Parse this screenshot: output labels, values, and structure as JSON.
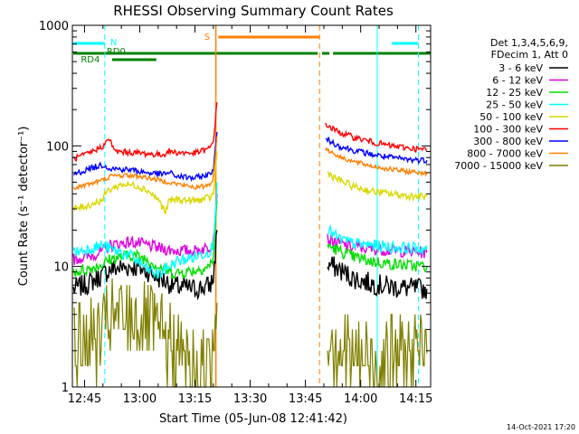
{
  "chart_data": {
    "type": "line",
    "title": "RHESSI Observing Summary Count Rates",
    "xlabel": "Start Time (05-Jun-08 12:41:42)",
    "ylabel": "Count Rate (s⁻¹ detector⁻¹)",
    "yscale": "log",
    "ylim": [
      1,
      1000
    ],
    "xlim_minutes": [
      "12:41:42",
      "14:19:00"
    ],
    "x_ticks": [
      "12:45",
      "13:00",
      "13:15",
      "13:30",
      "13:45",
      "14:00",
      "14:15"
    ],
    "y_ticks": [
      "1",
      "10",
      "100",
      "1000"
    ],
    "footer_date": "14-Oct-2021 17:20",
    "legend_header": [
      "Det 1,3,4,5,6,9,",
      "FDecim 1, Att 0"
    ],
    "flags": {
      "n_label": "N",
      "s_label": "S",
      "rd0_label": "RD0",
      "rd4_label": "RD4"
    },
    "vertical_markers": {
      "cyan_solid": [
        "12:41:42",
        "14:04:30"
      ],
      "cyan_dashed": [
        "12:50:30",
        "14:15:40"
      ],
      "orange_solid": [
        "13:20:40"
      ],
      "orange_dashed": [
        "13:48:50"
      ]
    },
    "series": [
      {
        "name": "3 - 6 keV",
        "color": "#000000",
        "points": [
          [
            "12:42",
            6.5
          ],
          [
            "12:46",
            7.2
          ],
          [
            "12:50",
            8.5
          ],
          [
            "12:52",
            9.5
          ],
          [
            "12:58",
            10
          ],
          [
            "13:02",
            9.2
          ],
          [
            "13:06",
            7.8
          ],
          [
            "13:10",
            6.8
          ],
          [
            "13:15",
            6.5
          ],
          [
            "13:19",
            6.9
          ],
          [
            "13:20",
            8
          ],
          [
            "13:21",
            20
          ],
          [
            "13:50",
            null
          ],
          [
            "13:51",
            10.5
          ],
          [
            "13:54",
            9.5
          ],
          [
            "13:58",
            8
          ],
          [
            "14:03",
            7.2
          ],
          [
            "14:08",
            6.8
          ],
          [
            "14:13",
            6.6
          ],
          [
            "14:18",
            6.5
          ]
        ]
      },
      {
        "name": "6 - 12 keV",
        "color": "#e000e0",
        "points": [
          [
            "12:42",
            11.5
          ],
          [
            "12:46",
            12
          ],
          [
            "12:50",
            13.5
          ],
          [
            "12:52",
            15
          ],
          [
            "12:58",
            16
          ],
          [
            "13:02",
            15
          ],
          [
            "13:06",
            14
          ],
          [
            "13:10",
            13.5
          ],
          [
            "13:15",
            13.5
          ],
          [
            "13:19",
            14.5
          ],
          [
            "13:20",
            17
          ],
          [
            "13:21",
            40
          ],
          [
            "13:50",
            null
          ],
          [
            "13:51",
            17
          ],
          [
            "13:54",
            15.5
          ],
          [
            "13:58",
            14.5
          ],
          [
            "14:03",
            14
          ],
          [
            "14:08",
            13.6
          ],
          [
            "14:13",
            13.3
          ],
          [
            "14:18",
            13
          ]
        ]
      },
      {
        "name": "12 - 25 keV",
        "color": "#00dd00",
        "points": [
          [
            "12:42",
            9
          ],
          [
            "12:46",
            9.5
          ],
          [
            "12:50",
            10.5
          ],
          [
            "12:52",
            11.5
          ],
          [
            "12:58",
            12.5
          ],
          [
            "13:02",
            11.5
          ],
          [
            "13:05",
            10
          ],
          [
            "13:08",
            9
          ],
          [
            "13:10",
            8.8
          ],
          [
            "13:15",
            9.3
          ],
          [
            "13:19",
            10
          ],
          [
            "13:20",
            12
          ],
          [
            "13:21",
            35
          ],
          [
            "13:50",
            null
          ],
          [
            "13:51",
            15
          ],
          [
            "13:54",
            13.5
          ],
          [
            "13:58",
            12
          ],
          [
            "14:03",
            11
          ],
          [
            "14:08",
            10.5
          ],
          [
            "14:13",
            10.2
          ],
          [
            "14:18",
            10
          ]
        ]
      },
      {
        "name": "25 - 50 keV",
        "color": "#00ffff",
        "points": [
          [
            "12:42",
            13
          ],
          [
            "12:46",
            14
          ],
          [
            "12:50",
            15
          ],
          [
            "12:52",
            14
          ],
          [
            "12:58",
            12
          ],
          [
            "13:02",
            9.5
          ],
          [
            "13:05",
            8.5
          ],
          [
            "13:07",
            9.5
          ],
          [
            "13:10",
            11
          ],
          [
            "13:15",
            12
          ],
          [
            "13:19",
            13.5
          ],
          [
            "13:20",
            15
          ],
          [
            "13:21",
            50
          ],
          [
            "13:50",
            null
          ],
          [
            "13:51",
            20
          ],
          [
            "13:54",
            17
          ],
          [
            "13:58",
            15.5
          ],
          [
            "14:03",
            15
          ],
          [
            "14:08",
            14.5
          ],
          [
            "14:13",
            14.2
          ],
          [
            "14:18",
            14
          ]
        ]
      },
      {
        "name": "50 - 100 keV",
        "color": "#d8d800",
        "points": [
          [
            "12:42",
            30
          ],
          [
            "12:46",
            32
          ],
          [
            "12:50",
            36
          ],
          [
            "12:51",
            42
          ],
          [
            "12:55",
            48
          ],
          [
            "12:59",
            47
          ],
          [
            "13:02",
            43
          ],
          [
            "13:05",
            36
          ],
          [
            "13:07",
            28
          ],
          [
            "13:08",
            35
          ],
          [
            "13:10",
            36
          ],
          [
            "13:15",
            35
          ],
          [
            "13:19",
            37
          ],
          [
            "13:20",
            40
          ],
          [
            "13:21",
            90
          ],
          [
            "13:50",
            null
          ],
          [
            "13:51",
            60
          ],
          [
            "13:54",
            52
          ],
          [
            "13:58",
            46
          ],
          [
            "14:03",
            42
          ],
          [
            "14:08",
            40
          ],
          [
            "14:13",
            38.5
          ],
          [
            "14:18",
            38
          ]
        ]
      },
      {
        "name": "100 - 300 keV",
        "color": "#ff0000",
        "points": [
          [
            "12:42",
            78
          ],
          [
            "12:46",
            86
          ],
          [
            "12:50",
            100
          ],
          [
            "12:52",
            115
          ],
          [
            "12:53",
            90
          ],
          [
            "12:58",
            88
          ],
          [
            "13:02",
            86
          ],
          [
            "13:06",
            84
          ],
          [
            "13:08",
            90
          ],
          [
            "13:10",
            88
          ],
          [
            "13:15",
            87
          ],
          [
            "13:19",
            95
          ],
          [
            "13:20",
            110
          ],
          [
            "13:21",
            230
          ],
          [
            "13:50",
            null
          ],
          [
            "13:50:30",
            150
          ],
          [
            "13:54",
            130
          ],
          [
            "13:58",
            118
          ],
          [
            "14:03",
            108
          ],
          [
            "14:08",
            100
          ],
          [
            "14:13",
            96
          ],
          [
            "14:18",
            92
          ]
        ]
      },
      {
        "name": "300 - 800 keV",
        "color": "#0000ff",
        "points": [
          [
            "12:42",
            58
          ],
          [
            "12:46",
            64
          ],
          [
            "12:50",
            70
          ],
          [
            "12:52",
            65
          ],
          [
            "12:58",
            63
          ],
          [
            "13:02",
            60
          ],
          [
            "13:06",
            58
          ],
          [
            "13:08",
            60
          ],
          [
            "13:10",
            56
          ],
          [
            "13:15",
            54
          ],
          [
            "13:19",
            58
          ],
          [
            "13:20",
            65
          ],
          [
            "13:21",
            130
          ],
          [
            "13:50",
            null
          ],
          [
            "13:50:30",
            115
          ],
          [
            "13:54",
            100
          ],
          [
            "13:58",
            92
          ],
          [
            "14:03",
            85
          ],
          [
            "14:08",
            80
          ],
          [
            "14:13",
            77
          ],
          [
            "14:18",
            76
          ]
        ]
      },
      {
        "name": "800 - 7000 keV",
        "color": "#ff8000",
        "points": [
          [
            "12:42",
            45
          ],
          [
            "12:46",
            48
          ],
          [
            "12:50",
            52
          ],
          [
            "12:52",
            56
          ],
          [
            "12:56",
            57
          ],
          [
            "13:00",
            56
          ],
          [
            "13:04",
            53
          ],
          [
            "13:08",
            50
          ],
          [
            "13:12",
            47
          ],
          [
            "13:16",
            45
          ],
          [
            "13:19",
            48
          ],
          [
            "13:20",
            55
          ],
          [
            "13:21",
            120
          ],
          [
            "13:50",
            null
          ],
          [
            "13:50:30",
            95
          ],
          [
            "13:54",
            82
          ],
          [
            "13:58",
            74
          ],
          [
            "14:03",
            68
          ],
          [
            "14:08",
            64
          ],
          [
            "14:13",
            61
          ],
          [
            "14:18",
            60
          ]
        ]
      },
      {
        "name": "7000 - 15000 keV",
        "color": "#808000",
        "points": [
          [
            "12:42",
            2.3
          ],
          [
            "12:50",
            2.6
          ],
          [
            "12:51",
            3.5
          ],
          [
            "12:58",
            3.8
          ],
          [
            "13:03",
            3.2
          ],
          [
            "13:06",
            2.6
          ],
          [
            "13:10",
            2.0
          ],
          [
            "13:14",
            1.5
          ],
          [
            "13:19",
            1.4
          ],
          [
            "13:20",
            2.5
          ],
          [
            "13:21",
            5
          ],
          [
            "13:50",
            null
          ],
          [
            "13:51",
            2.8
          ],
          [
            "13:54",
            2.2
          ],
          [
            "13:58",
            1.8
          ],
          [
            "14:03",
            1.7
          ],
          [
            "14:10",
            1.8
          ],
          [
            "14:18",
            1.9
          ]
        ]
      }
    ]
  }
}
